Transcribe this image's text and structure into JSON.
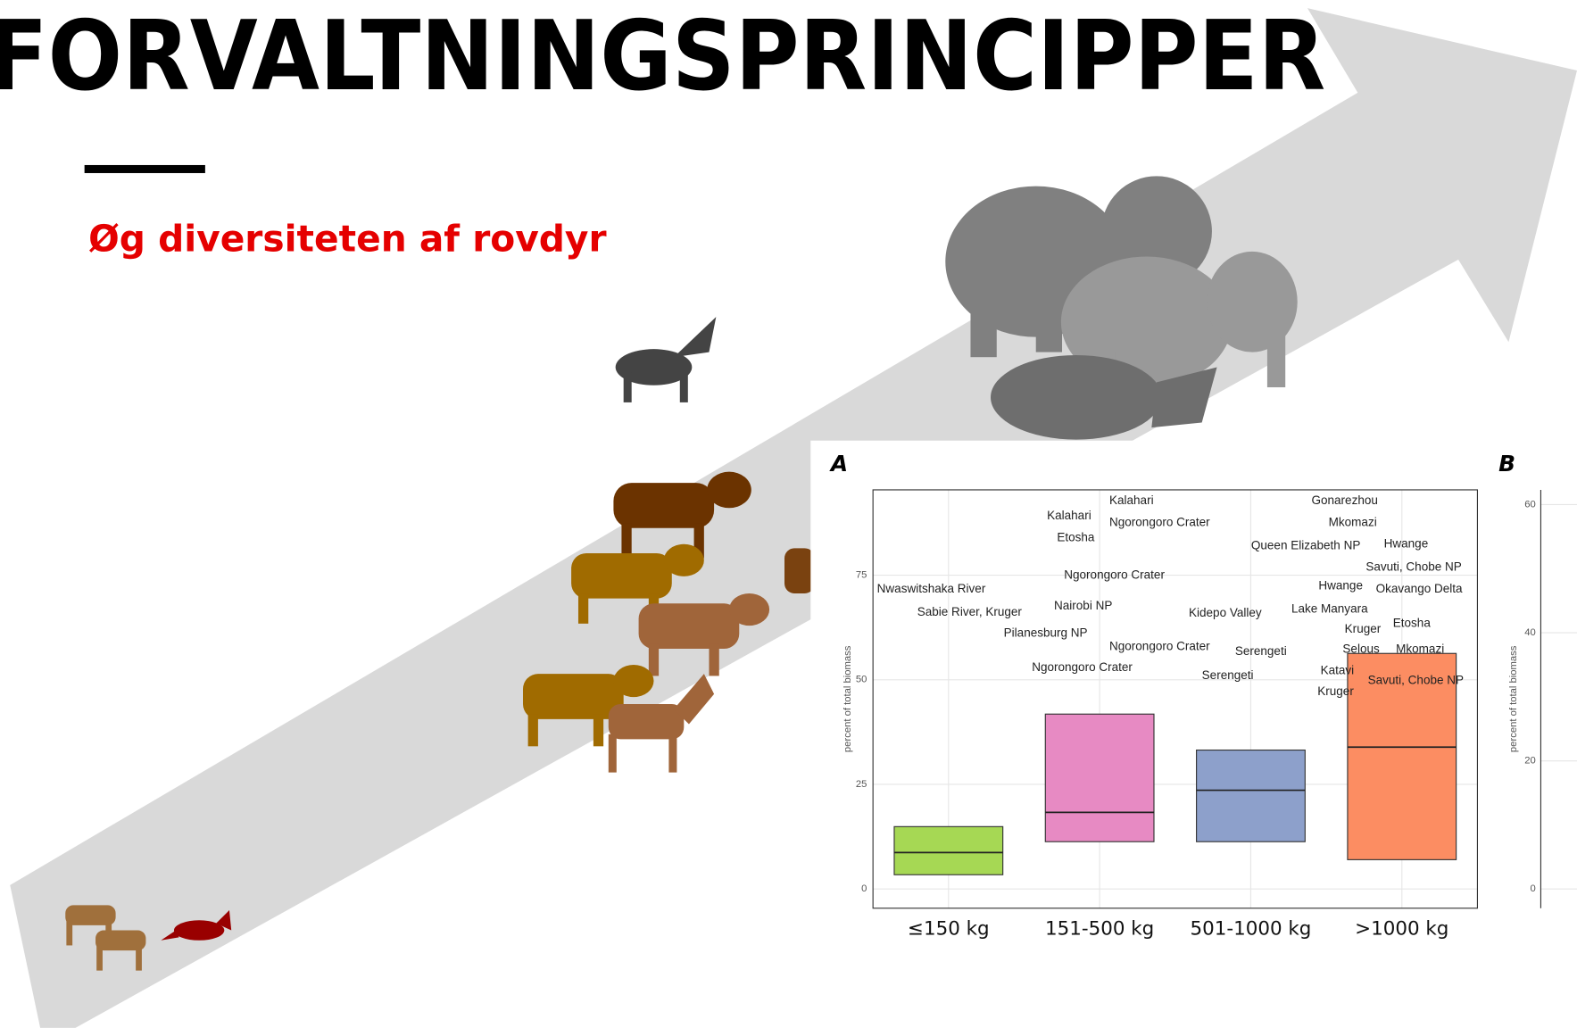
{
  "header": {
    "title": "FORVALTNINGSPRINCIPPER",
    "subtitle": "Øg diversiteten af rovdyr"
  },
  "chart": {
    "type": "box",
    "panel": "A",
    "ylabel": "percent of total biomass",
    "ylim": [
      -4.6,
      95.4
    ],
    "yticks": [
      0,
      25,
      50,
      75
    ],
    "grid": true,
    "categories": [
      "≤150 kg",
      "151-500 kg",
      "501-1000 kg",
      ">1000 kg"
    ],
    "boxes": [
      {
        "q1": 3.4,
        "median": 8.7,
        "q3": 14.9,
        "color": "#a6d854"
      },
      {
        "q1": 11.3,
        "median": 18.3,
        "q3": 41.8,
        "color": "#e78ac3"
      },
      {
        "q1": 11.3,
        "median": 23.6,
        "q3": 33.2,
        "color": "#8da0cb"
      },
      {
        "q1": 7.0,
        "median": 33.9,
        "q3": 56.3,
        "color": "#fc8d62"
      }
    ],
    "annotations": [
      "Kalahari",
      "Kalahari",
      "Ngorongoro Crater",
      "Etosha",
      "Ngorongoro Crater",
      "Nairobi NP",
      "Pilanesburg NP",
      "Ngorongoro Crater",
      "Ngorongoro Crater",
      "Nwaswitshaka River",
      "Sabie River, Kruger",
      "Kidepo Valley",
      "Serengeti",
      "Serengeti",
      "Gonarezhou",
      "Mkomazi",
      "Queen Elizabeth NP",
      "Hwange",
      "Savuti, Chobe NP",
      "Hwange",
      "Okavango Delta",
      "Lake Manyara",
      "Etosha",
      "Kruger",
      "Selous",
      "Mkomazi",
      "Katavi",
      "Savuti, Chobe NP",
      "Kruger"
    ]
  },
  "chart_b": {
    "panel": "B",
    "ylabel": "percent of total biomass",
    "ylim": [
      -3,
      62.3
    ],
    "yticks": [
      0,
      20,
      40,
      60
    ]
  }
}
